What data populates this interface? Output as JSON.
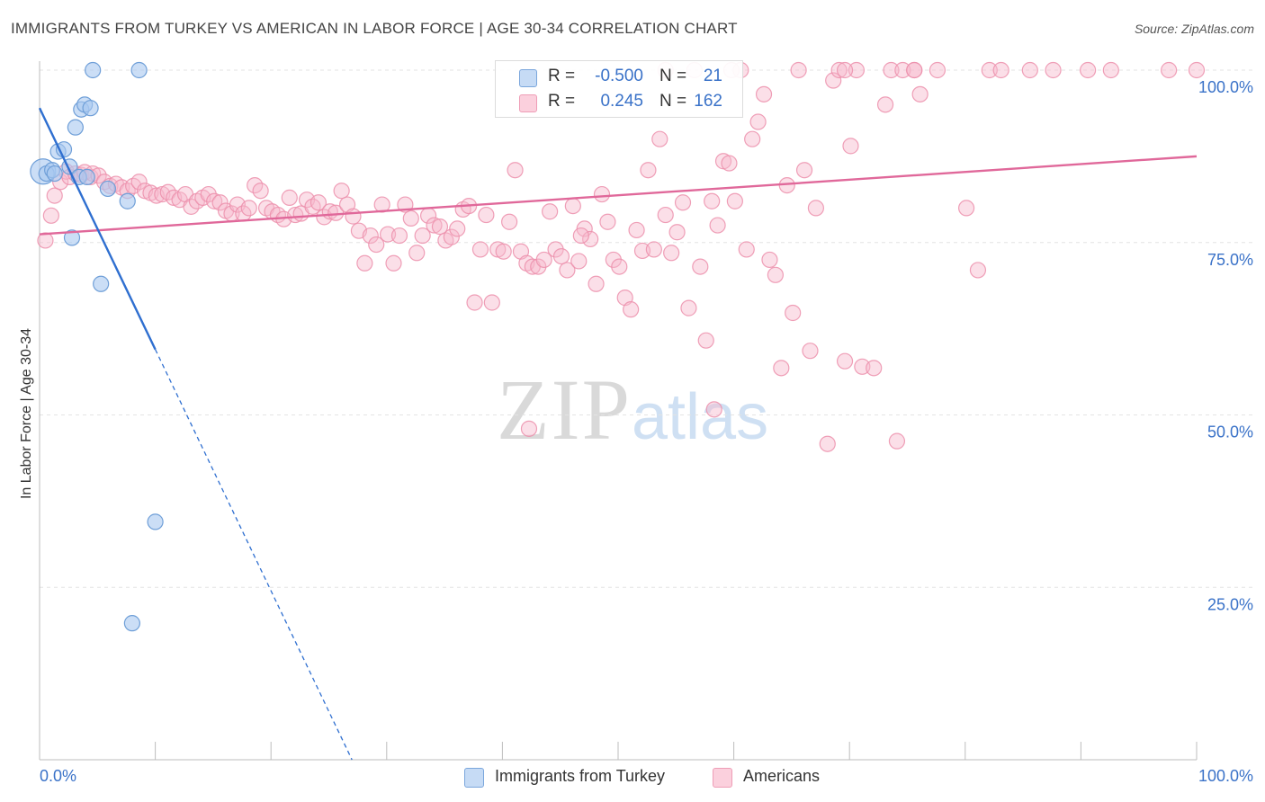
{
  "header": {
    "title": "IMMIGRANTS FROM TURKEY VS AMERICAN IN LABOR FORCE | AGE 30-34 CORRELATION CHART",
    "source": "Source: ZipAtlas.com"
  },
  "watermark": {
    "zip": "ZIP",
    "atlas": "atlas"
  },
  "legend": {
    "rows": [
      {
        "r_label": "R =",
        "r_value": "-0.500",
        "n_label": "N =",
        "n_value": "21",
        "color": "#a9c8f0"
      },
      {
        "r_label": "R =",
        "r_value": "0.245",
        "n_label": "N =",
        "n_value": "162",
        "color": "#f7b9cc"
      }
    ]
  },
  "bottom_legend": {
    "turkey": "Immigrants from Turkey",
    "americans": "Americans"
  },
  "chart_data": {
    "type": "scatter",
    "ylabel": "In Labor Force | Age 30-34",
    "xlim": [
      0,
      100
    ],
    "ylim": [
      0,
      100
    ],
    "x_tick_labels": [
      "0.0%",
      "100.0%"
    ],
    "y_tick_labels": [
      {
        "value": 100,
        "label": "100.0%"
      },
      {
        "value": 75,
        "label": "75.0%"
      },
      {
        "value": 50,
        "label": "50.0%"
      },
      {
        "value": 25,
        "label": "25.0%"
      }
    ],
    "colors": {
      "turkey_fill": "#a9c8f0",
      "turkey_stroke": "#6f9fd8",
      "turkey_line": "#2f6fd0",
      "americans_fill": "#f7b9cc",
      "americans_stroke": "#ec8fab",
      "americans_line": "#e0689a",
      "axis_label": "#3a72c8",
      "grid": "#e3e3e3"
    },
    "series": [
      {
        "name": "Immigrants from Turkey",
        "trend": {
          "x0": 0,
          "y0": 94.5,
          "x1": 10,
          "y1": 59.5,
          "dash_to_x": 27
        },
        "points": [
          [
            0.3,
            85.3
          ],
          [
            0.6,
            85.0
          ],
          [
            1.1,
            85.5
          ],
          [
            1.3,
            85.0
          ],
          [
            1.6,
            88.2
          ],
          [
            2.1,
            88.5
          ],
          [
            2.6,
            86.0
          ],
          [
            3.1,
            91.7
          ],
          [
            3.4,
            84.5
          ],
          [
            3.6,
            94.3
          ],
          [
            3.9,
            95.0
          ],
          [
            4.1,
            84.5
          ],
          [
            4.4,
            94.5
          ],
          [
            4.6,
            100.0
          ],
          [
            2.8,
            75.7
          ],
          [
            5.3,
            69.0
          ],
          [
            5.9,
            82.8
          ],
          [
            7.6,
            81.0
          ],
          [
            8.6,
            100.0
          ],
          [
            10.0,
            34.5
          ],
          [
            8.0,
            19.8
          ]
        ]
      },
      {
        "name": "Americans",
        "trend": {
          "x0": 0,
          "y0": 76.2,
          "x1": 100,
          "y1": 87.5
        },
        "points": [
          [
            0.5,
            75.3
          ],
          [
            1.0,
            78.9
          ],
          [
            1.3,
            81.8
          ],
          [
            1.8,
            83.8
          ],
          [
            2.3,
            85.3
          ],
          [
            2.6,
            84.5
          ],
          [
            3.1,
            85.0
          ],
          [
            3.6,
            84.8
          ],
          [
            3.9,
            85.2
          ],
          [
            4.4,
            84.5
          ],
          [
            4.6,
            85.0
          ],
          [
            5.1,
            84.7
          ],
          [
            5.6,
            83.8
          ],
          [
            6.1,
            83.2
          ],
          [
            6.6,
            83.5
          ],
          [
            7.1,
            83.0
          ],
          [
            7.6,
            82.5
          ],
          [
            8.1,
            83.2
          ],
          [
            8.6,
            83.8
          ],
          [
            9.1,
            82.5
          ],
          [
            9.6,
            82.2
          ],
          [
            10.1,
            81.8
          ],
          [
            10.6,
            82.0
          ],
          [
            11.1,
            82.3
          ],
          [
            11.6,
            81.5
          ],
          [
            12.1,
            81.2
          ],
          [
            12.6,
            82.0
          ],
          [
            13.1,
            80.2
          ],
          [
            13.6,
            81.0
          ],
          [
            14.1,
            81.5
          ],
          [
            14.6,
            82.0
          ],
          [
            15.1,
            81.0
          ],
          [
            15.6,
            80.8
          ],
          [
            16.1,
            79.6
          ],
          [
            16.6,
            79.2
          ],
          [
            17.1,
            80.5
          ],
          [
            17.6,
            79.2
          ],
          [
            18.1,
            80.0
          ],
          [
            18.6,
            83.3
          ],
          [
            19.1,
            82.5
          ],
          [
            19.6,
            80.0
          ],
          [
            20.1,
            79.5
          ],
          [
            20.6,
            79.0
          ],
          [
            21.1,
            78.4
          ],
          [
            21.6,
            81.5
          ],
          [
            22.1,
            79.0
          ],
          [
            22.6,
            79.2
          ],
          [
            23.1,
            81.2
          ],
          [
            23.6,
            80.2
          ],
          [
            24.1,
            80.8
          ],
          [
            24.6,
            78.7
          ],
          [
            25.1,
            79.5
          ],
          [
            25.6,
            79.3
          ],
          [
            26.1,
            82.5
          ],
          [
            26.6,
            80.5
          ],
          [
            27.1,
            78.8
          ],
          [
            27.6,
            76.7
          ],
          [
            28.1,
            72.0
          ],
          [
            28.6,
            76.0
          ],
          [
            29.1,
            74.7
          ],
          [
            29.6,
            80.5
          ],
          [
            30.1,
            76.2
          ],
          [
            30.6,
            72.0
          ],
          [
            31.1,
            76.0
          ],
          [
            31.6,
            80.5
          ],
          [
            32.1,
            78.5
          ],
          [
            32.6,
            73.5
          ],
          [
            33.1,
            76.0
          ],
          [
            33.6,
            78.9
          ],
          [
            34.1,
            77.5
          ],
          [
            34.6,
            77.3
          ],
          [
            35.1,
            75.3
          ],
          [
            35.6,
            75.8
          ],
          [
            36.1,
            77.0
          ],
          [
            36.6,
            79.8
          ],
          [
            37.1,
            80.3
          ],
          [
            37.6,
            66.3
          ],
          [
            38.1,
            74.0
          ],
          [
            38.6,
            79.0
          ],
          [
            39.1,
            66.3
          ],
          [
            39.6,
            74.0
          ],
          [
            40.1,
            73.7
          ],
          [
            40.6,
            78.0
          ],
          [
            41.1,
            85.5
          ],
          [
            41.6,
            73.7
          ],
          [
            42.1,
            72.0
          ],
          [
            42.6,
            71.5
          ],
          [
            43.1,
            71.5
          ],
          [
            43.6,
            72.5
          ],
          [
            44.1,
            79.5
          ],
          [
            44.6,
            74.0
          ],
          [
            45.1,
            73.0
          ],
          [
            45.6,
            71.0
          ],
          [
            46.1,
            80.3
          ],
          [
            46.6,
            72.3
          ],
          [
            47.1,
            77.0
          ],
          [
            47.6,
            75.5
          ],
          [
            48.1,
            69.0
          ],
          [
            48.6,
            82.0
          ],
          [
            49.1,
            78.0
          ],
          [
            49.6,
            72.5
          ],
          [
            50.1,
            71.5
          ],
          [
            50.6,
            67.0
          ],
          [
            51.1,
            65.3
          ],
          [
            51.6,
            76.8
          ],
          [
            52.1,
            73.8
          ],
          [
            52.6,
            85.5
          ],
          [
            53.1,
            74.0
          ],
          [
            53.6,
            90.0
          ],
          [
            54.1,
            79.0
          ],
          [
            54.6,
            73.5
          ],
          [
            55.1,
            76.5
          ],
          [
            55.6,
            80.8
          ],
          [
            56.1,
            65.5
          ],
          [
            56.6,
            100.0
          ],
          [
            57.1,
            71.5
          ],
          [
            57.6,
            60.8
          ],
          [
            58.1,
            81.0
          ],
          [
            58.6,
            77.5
          ],
          [
            59.1,
            86.8
          ],
          [
            59.6,
            86.5
          ],
          [
            60.1,
            81.0
          ],
          [
            60.6,
            100.0
          ],
          [
            61.1,
            74.0
          ],
          [
            61.6,
            90.0
          ],
          [
            62.1,
            92.5
          ],
          [
            62.6,
            96.5
          ],
          [
            63.1,
            72.5
          ],
          [
            63.6,
            70.3
          ],
          [
            64.1,
            56.8
          ],
          [
            64.6,
            83.3
          ],
          [
            65.1,
            64.8
          ],
          [
            65.6,
            100.0
          ],
          [
            66.1,
            85.5
          ],
          [
            66.6,
            59.3
          ],
          [
            67.1,
            80.0
          ],
          [
            68.1,
            45.8
          ],
          [
            68.6,
            98.5
          ],
          [
            69.1,
            100.0
          ],
          [
            69.6,
            57.8
          ],
          [
            70.1,
            89.0
          ],
          [
            70.6,
            100.0
          ],
          [
            71.1,
            57.0
          ],
          [
            72.1,
            56.8
          ],
          [
            73.1,
            95.0
          ],
          [
            73.6,
            100.0
          ],
          [
            74.1,
            46.2
          ],
          [
            74.6,
            100.0
          ],
          [
            75.6,
            100.0
          ],
          [
            76.1,
            96.5
          ],
          [
            77.6,
            100.0
          ],
          [
            80.1,
            80.0
          ],
          [
            81.1,
            71.0
          ],
          [
            82.1,
            100.0
          ],
          [
            83.1,
            100.0
          ],
          [
            85.6,
            100.0
          ],
          [
            87.6,
            100.0
          ],
          [
            90.6,
            100.0
          ],
          [
            92.6,
            100.0
          ],
          [
            97.6,
            100.0
          ],
          [
            100.0,
            100.0
          ],
          [
            59.8,
            100.0
          ],
          [
            69.6,
            100.0
          ],
          [
            75.6,
            100.0
          ],
          [
            46.8,
            76.0
          ],
          [
            58.3,
            50.8
          ],
          [
            42.3,
            48.0
          ],
          [
            54.1,
            100.0
          ]
        ]
      }
    ]
  }
}
